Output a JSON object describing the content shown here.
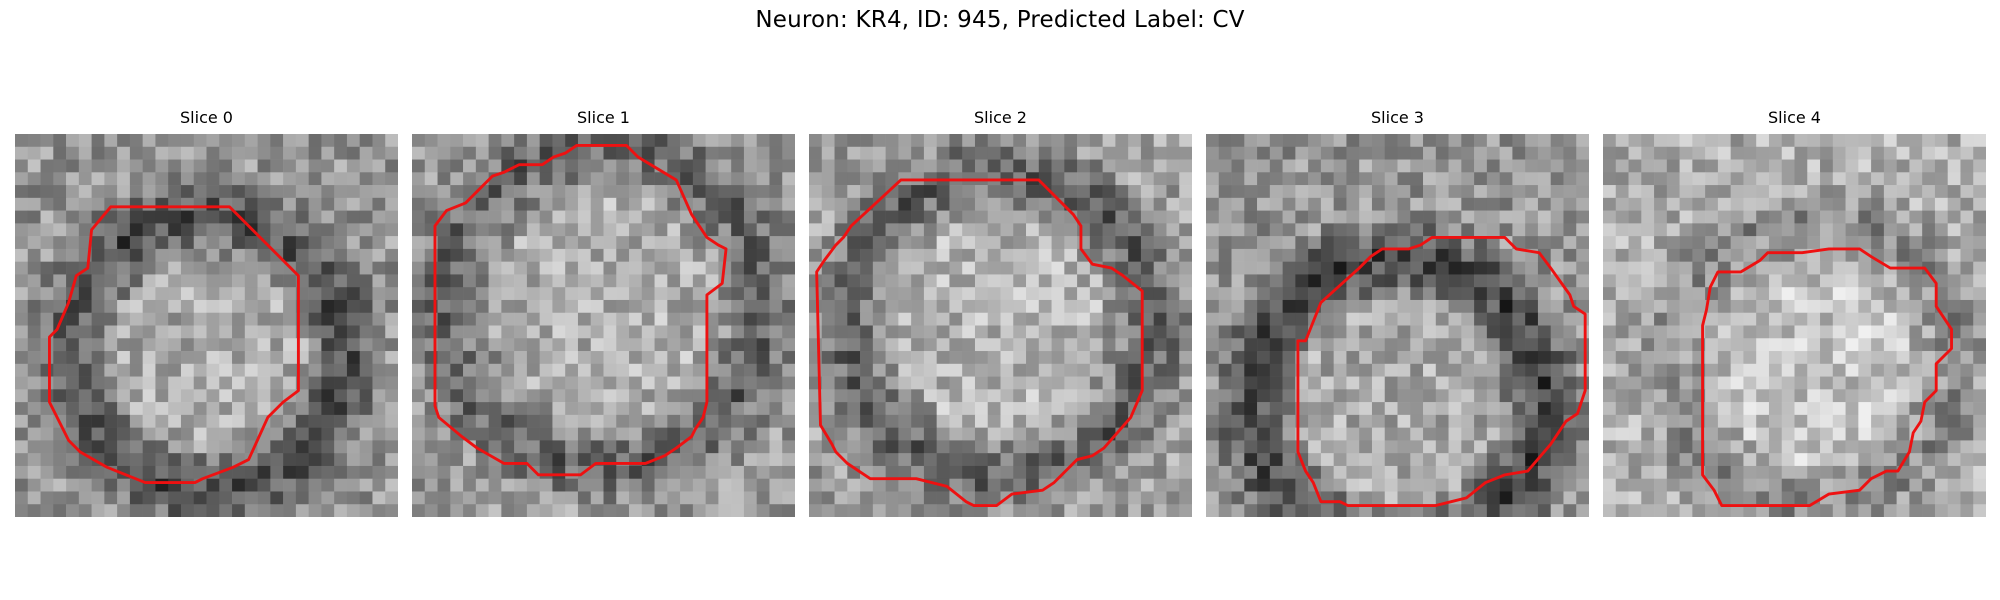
{
  "figure": {
    "title": "Neuron: KR4, ID: 945, Predicted Label: CV"
  },
  "style": {
    "contour_color": "#ee1111",
    "colormap": "gray"
  },
  "panels": [
    {
      "title": "Slice 0",
      "seed": 11,
      "base": 150,
      "rim": 80,
      "center": [
        0.5,
        0.57
      ],
      "radius": 0.36,
      "contour": [
        [
          0.25,
          0.19
        ],
        [
          0.56,
          0.19
        ],
        [
          0.74,
          0.37
        ],
        [
          0.74,
          0.67
        ],
        [
          0.7,
          0.7
        ],
        [
          0.66,
          0.74
        ],
        [
          0.61,
          0.85
        ],
        [
          0.57,
          0.87
        ],
        [
          0.49,
          0.9
        ],
        [
          0.47,
          0.91
        ],
        [
          0.34,
          0.91
        ],
        [
          0.24,
          0.87
        ],
        [
          0.17,
          0.83
        ],
        [
          0.14,
          0.8
        ],
        [
          0.11,
          0.74
        ],
        [
          0.09,
          0.7
        ],
        [
          0.09,
          0.53
        ],
        [
          0.11,
          0.51
        ],
        [
          0.14,
          0.44
        ],
        [
          0.16,
          0.37
        ],
        [
          0.19,
          0.35
        ],
        [
          0.2,
          0.25
        ]
      ]
    },
    {
      "title": "Slice 1",
      "seed": 23,
      "base": 155,
      "rim": 60,
      "center": [
        0.5,
        0.45
      ],
      "radius": 0.42,
      "contour": [
        [
          0.28,
          0.08
        ],
        [
          0.34,
          0.08
        ],
        [
          0.37,
          0.06
        ],
        [
          0.4,
          0.05
        ],
        [
          0.43,
          0.03
        ],
        [
          0.56,
          0.03
        ],
        [
          0.59,
          0.06
        ],
        [
          0.69,
          0.12
        ],
        [
          0.73,
          0.21
        ],
        [
          0.77,
          0.27
        ],
        [
          0.8,
          0.29
        ],
        [
          0.82,
          0.3
        ],
        [
          0.81,
          0.39
        ],
        [
          0.77,
          0.42
        ],
        [
          0.77,
          0.7
        ],
        [
          0.76,
          0.74
        ],
        [
          0.74,
          0.77
        ],
        [
          0.73,
          0.79
        ],
        [
          0.69,
          0.82
        ],
        [
          0.66,
          0.84
        ],
        [
          0.61,
          0.86
        ],
        [
          0.48,
          0.86
        ],
        [
          0.44,
          0.89
        ],
        [
          0.33,
          0.89
        ],
        [
          0.3,
          0.86
        ],
        [
          0.24,
          0.86
        ],
        [
          0.17,
          0.82
        ],
        [
          0.13,
          0.79
        ],
        [
          0.07,
          0.74
        ],
        [
          0.06,
          0.71
        ],
        [
          0.06,
          0.24
        ],
        [
          0.09,
          0.2
        ],
        [
          0.14,
          0.18
        ],
        [
          0.16,
          0.16
        ],
        [
          0.17,
          0.15
        ],
        [
          0.19,
          0.13
        ],
        [
          0.21,
          0.11
        ],
        [
          0.24,
          0.1
        ]
      ]
    },
    {
      "title": "Slice 2",
      "seed": 37,
      "base": 160,
      "rim": 70,
      "center": [
        0.5,
        0.5
      ],
      "radius": 0.4,
      "contour": [
        [
          0.24,
          0.12
        ],
        [
          0.6,
          0.12
        ],
        [
          0.69,
          0.21
        ],
        [
          0.71,
          0.24
        ],
        [
          0.71,
          0.3
        ],
        [
          0.74,
          0.34
        ],
        [
          0.79,
          0.35
        ],
        [
          0.82,
          0.37
        ],
        [
          0.87,
          0.41
        ],
        [
          0.87,
          0.67
        ],
        [
          0.84,
          0.74
        ],
        [
          0.77,
          0.82
        ],
        [
          0.74,
          0.84
        ],
        [
          0.7,
          0.85
        ],
        [
          0.67,
          0.88
        ],
        [
          0.64,
          0.91
        ],
        [
          0.61,
          0.93
        ],
        [
          0.53,
          0.94
        ],
        [
          0.49,
          0.97
        ],
        [
          0.43,
          0.97
        ],
        [
          0.41,
          0.96
        ],
        [
          0.36,
          0.92
        ],
        [
          0.28,
          0.9
        ],
        [
          0.16,
          0.9
        ],
        [
          0.1,
          0.86
        ],
        [
          0.07,
          0.83
        ],
        [
          0.06,
          0.81
        ],
        [
          0.03,
          0.76
        ],
        [
          0.02,
          0.36
        ],
        [
          0.04,
          0.33
        ],
        [
          0.07,
          0.29
        ],
        [
          0.09,
          0.27
        ],
        [
          0.11,
          0.24
        ]
      ]
    },
    {
      "title": "Slice 3",
      "seed": 53,
      "base": 150,
      "rim": 90,
      "center": [
        0.5,
        0.7
      ],
      "radius": 0.38,
      "contour": [
        [
          0.26,
          0.54
        ],
        [
          0.3,
          0.44
        ],
        [
          0.4,
          0.35
        ],
        [
          0.43,
          0.32
        ],
        [
          0.46,
          0.3
        ],
        [
          0.53,
          0.3
        ],
        [
          0.56,
          0.29
        ],
        [
          0.59,
          0.27
        ],
        [
          0.78,
          0.27
        ],
        [
          0.81,
          0.3
        ],
        [
          0.87,
          0.31
        ],
        [
          0.9,
          0.35
        ],
        [
          0.95,
          0.42
        ],
        [
          0.96,
          0.45
        ],
        [
          0.99,
          0.47
        ],
        [
          0.99,
          0.67
        ],
        [
          0.98,
          0.7
        ],
        [
          0.97,
          0.73
        ],
        [
          0.94,
          0.75
        ],
        [
          0.9,
          0.81
        ],
        [
          0.84,
          0.88
        ],
        [
          0.78,
          0.89
        ],
        [
          0.73,
          0.91
        ],
        [
          0.68,
          0.95
        ],
        [
          0.64,
          0.96
        ],
        [
          0.6,
          0.97
        ],
        [
          0.37,
          0.97
        ],
        [
          0.35,
          0.96
        ],
        [
          0.3,
          0.96
        ],
        [
          0.28,
          0.91
        ],
        [
          0.26,
          0.88
        ],
        [
          0.24,
          0.83
        ],
        [
          0.24,
          0.54
        ]
      ]
    },
    {
      "title": "Slice 4",
      "seed": 71,
      "base": 175,
      "rim": 40,
      "center": [
        0.55,
        0.6
      ],
      "radius": 0.38,
      "contour": [
        [
          0.3,
          0.36
        ],
        [
          0.36,
          0.36
        ],
        [
          0.41,
          0.33
        ],
        [
          0.43,
          0.31
        ],
        [
          0.52,
          0.31
        ],
        [
          0.59,
          0.3
        ],
        [
          0.67,
          0.3
        ],
        [
          0.7,
          0.32
        ],
        [
          0.75,
          0.35
        ],
        [
          0.84,
          0.35
        ],
        [
          0.87,
          0.39
        ],
        [
          0.87,
          0.45
        ],
        [
          0.89,
          0.48
        ],
        [
          0.91,
          0.51
        ],
        [
          0.91,
          0.56
        ],
        [
          0.89,
          0.58
        ],
        [
          0.87,
          0.6
        ],
        [
          0.87,
          0.67
        ],
        [
          0.84,
          0.7
        ],
        [
          0.83,
          0.75
        ],
        [
          0.81,
          0.78
        ],
        [
          0.8,
          0.83
        ],
        [
          0.77,
          0.88
        ],
        [
          0.74,
          0.88
        ],
        [
          0.7,
          0.9
        ],
        [
          0.67,
          0.93
        ],
        [
          0.59,
          0.94
        ],
        [
          0.54,
          0.97
        ],
        [
          0.31,
          0.97
        ],
        [
          0.29,
          0.93
        ],
        [
          0.26,
          0.89
        ],
        [
          0.26,
          0.5
        ],
        [
          0.27,
          0.46
        ],
        [
          0.28,
          0.4
        ]
      ]
    }
  ]
}
